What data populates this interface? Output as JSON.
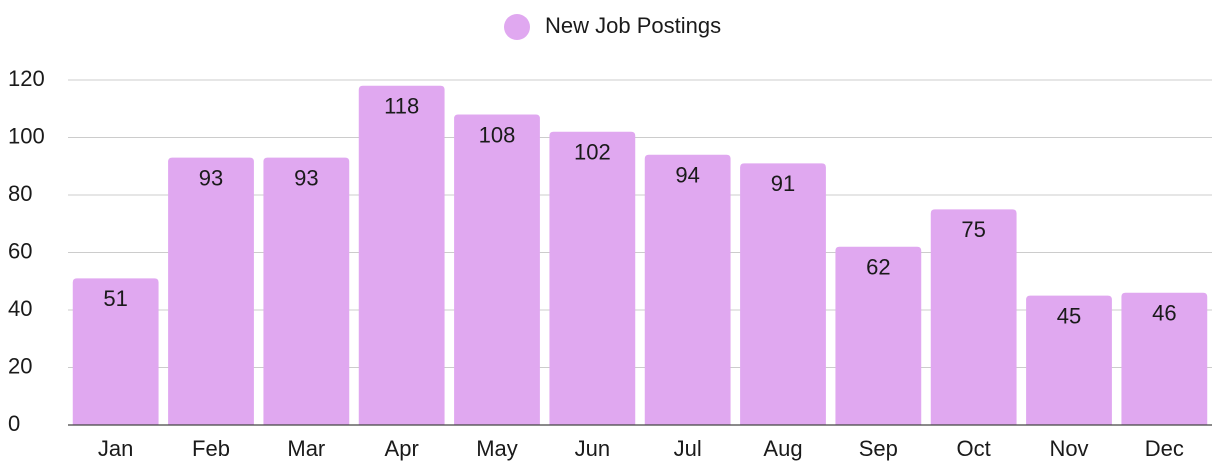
{
  "chart_data": {
    "type": "bar",
    "categories": [
      "Jan",
      "Feb",
      "Mar",
      "Apr",
      "May",
      "Jun",
      "Jul",
      "Aug",
      "Sep",
      "Oct",
      "Nov",
      "Dec"
    ],
    "series": [
      {
        "name": "New Job Postings",
        "color": "#e0a8f0",
        "values": [
          51,
          93,
          93,
          118,
          108,
          102,
          94,
          91,
          62,
          75,
          45,
          46
        ]
      }
    ],
    "ylim": [
      0,
      120
    ],
    "yticks": [
      0,
      20,
      40,
      60,
      80,
      100,
      120
    ],
    "grid": true,
    "legend": "top"
  }
}
